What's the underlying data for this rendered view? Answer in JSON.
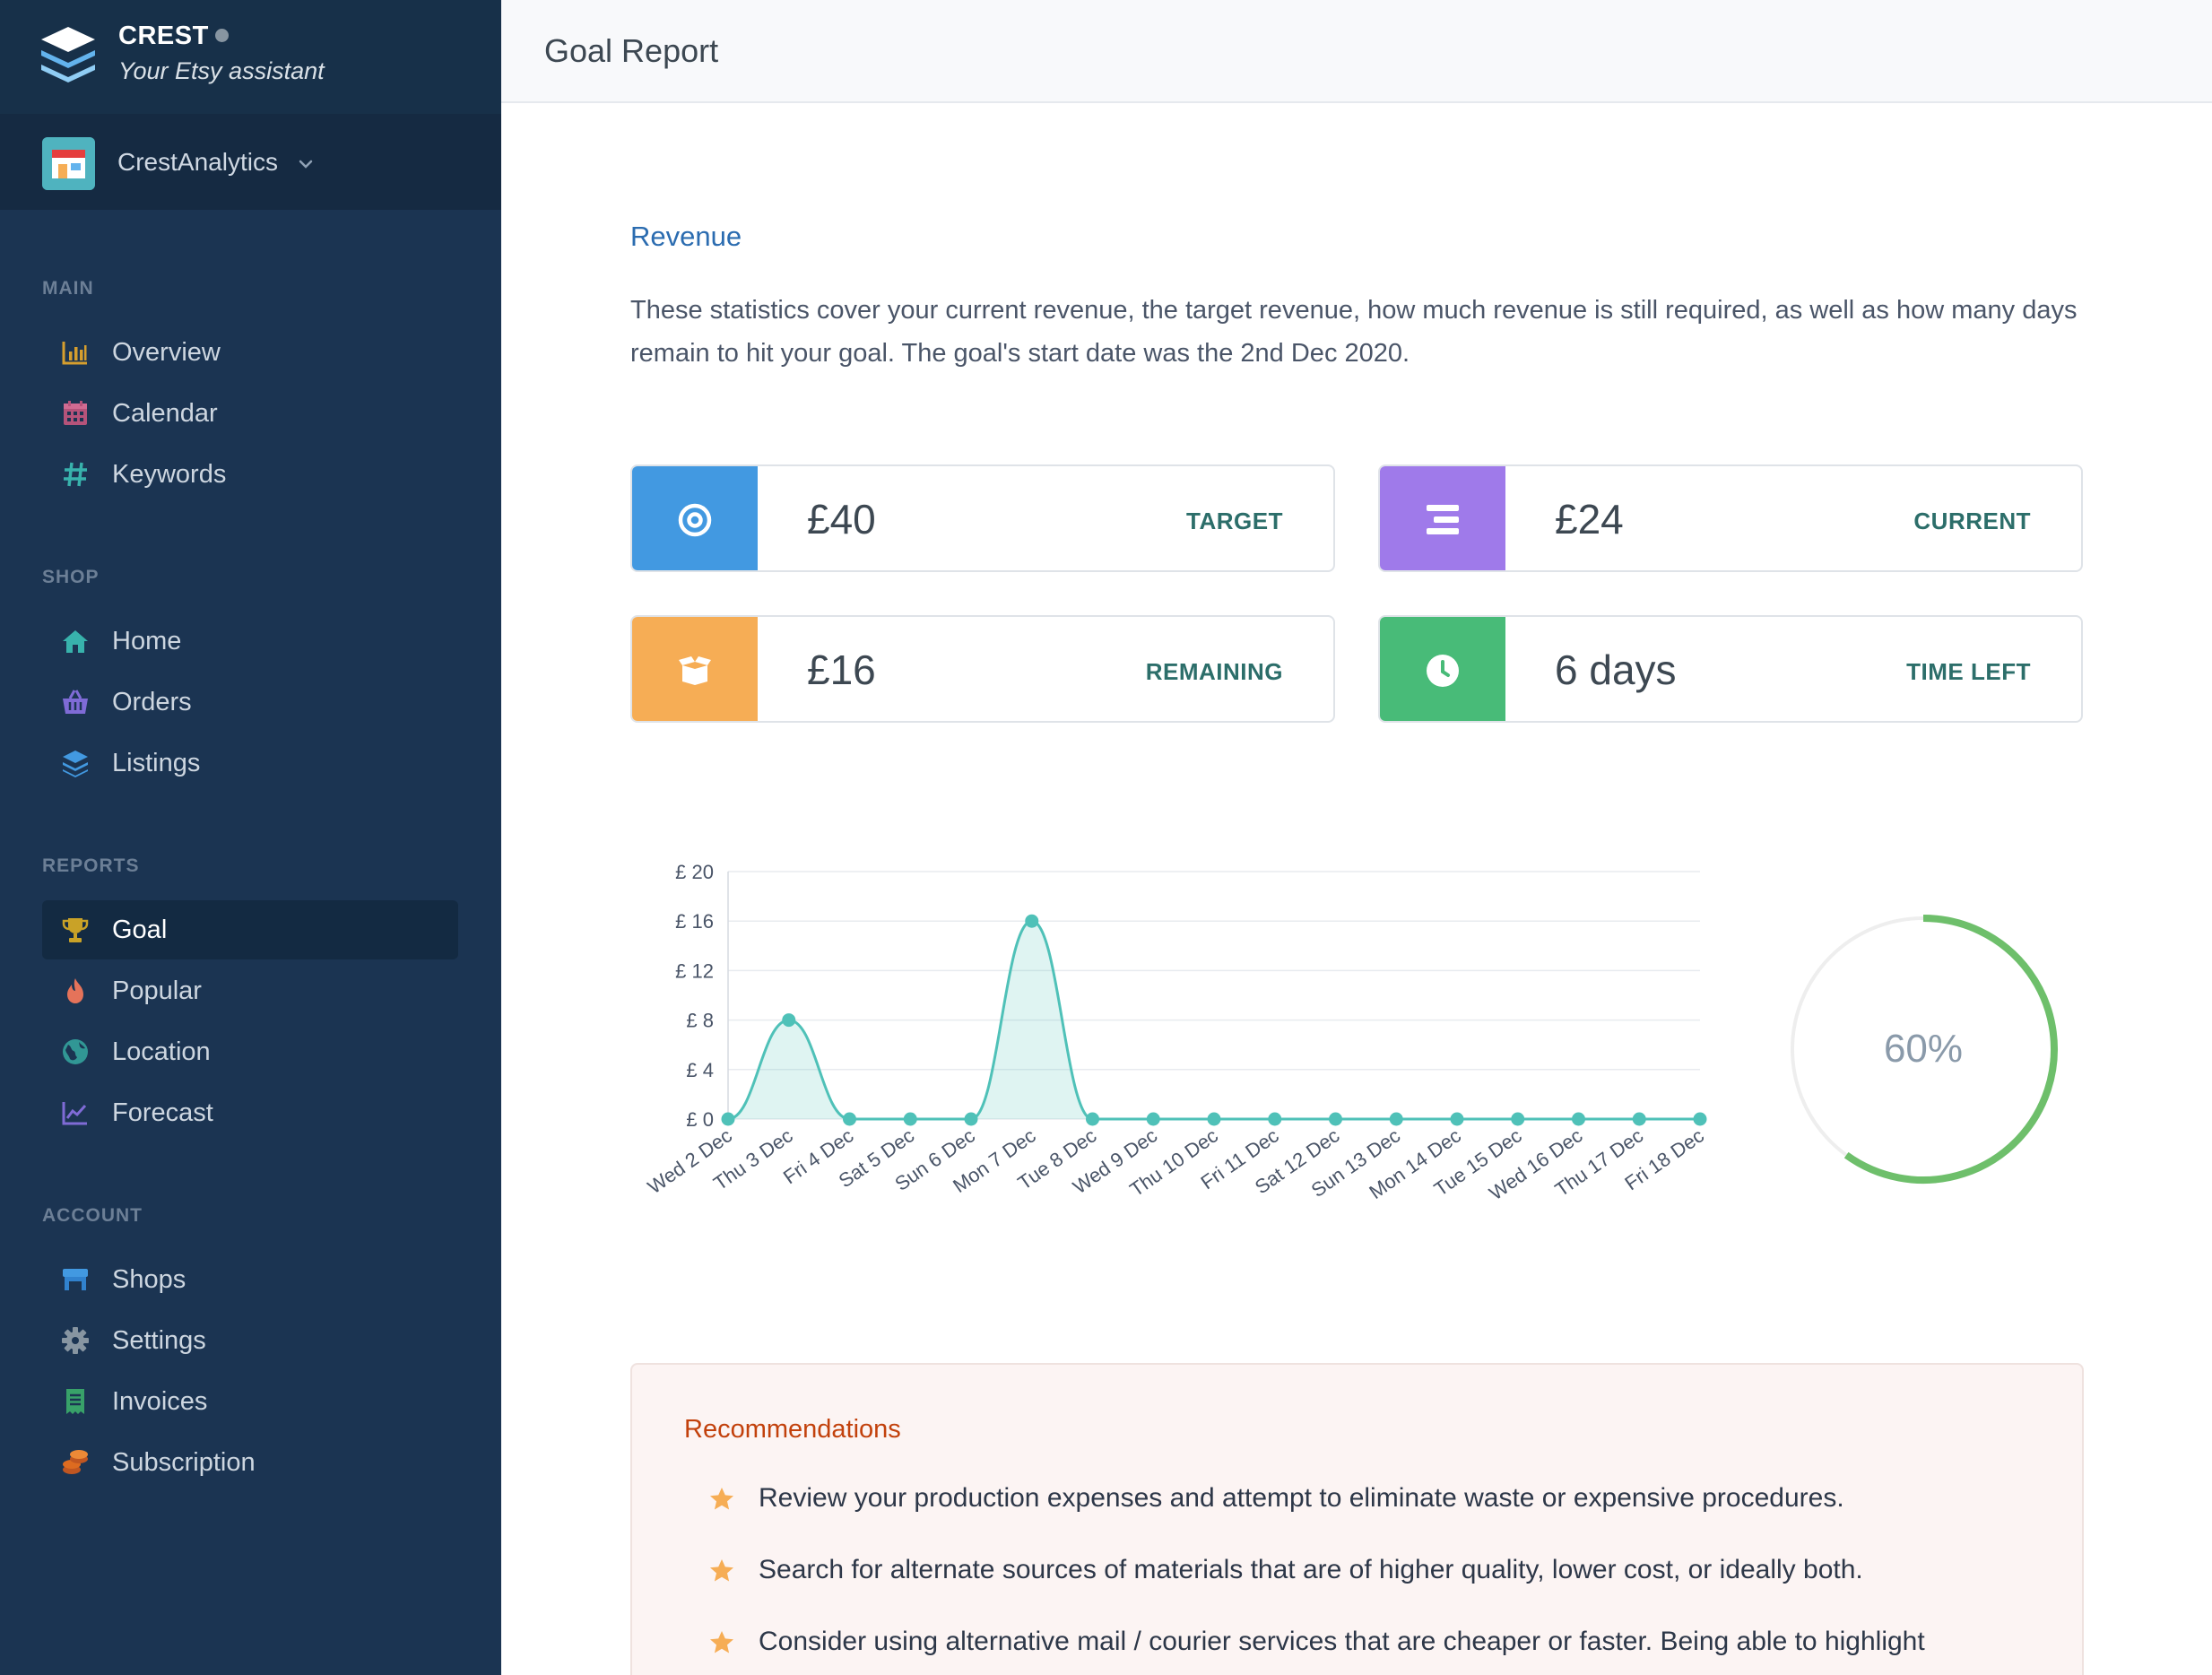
{
  "brand": {
    "name": "CREST",
    "tagline": "Your Etsy assistant"
  },
  "shop": {
    "name": "CrestAnalytics"
  },
  "nav": {
    "sections": [
      {
        "title": "MAIN",
        "items": [
          {
            "label": "Overview",
            "icon": "bar-chart-icon"
          },
          {
            "label": "Calendar",
            "icon": "calendar-icon"
          },
          {
            "label": "Keywords",
            "icon": "hash-icon"
          }
        ]
      },
      {
        "title": "SHOP",
        "items": [
          {
            "label": "Home",
            "icon": "home-icon"
          },
          {
            "label": "Orders",
            "icon": "basket-icon"
          },
          {
            "label": "Listings",
            "icon": "layers-icon"
          }
        ]
      },
      {
        "title": "REPORTS",
        "items": [
          {
            "label": "Goal",
            "icon": "trophy-icon",
            "active": true
          },
          {
            "label": "Popular",
            "icon": "flame-icon"
          },
          {
            "label": "Location",
            "icon": "globe-icon"
          },
          {
            "label": "Forecast",
            "icon": "line-chart-icon"
          }
        ]
      },
      {
        "title": "ACCOUNT",
        "items": [
          {
            "label": "Shops",
            "icon": "store-icon"
          },
          {
            "label": "Settings",
            "icon": "gear-icon"
          },
          {
            "label": "Invoices",
            "icon": "receipt-icon"
          },
          {
            "label": "Subscription",
            "icon": "coins-icon"
          }
        ]
      }
    ]
  },
  "header": {
    "title": "Goal Report"
  },
  "revenue": {
    "title": "Revenue",
    "description": "These statistics cover your current revenue, the target revenue, how much revenue is still required, as well as how many days remain to hit your goal. The goal's start date was the 2nd Dec 2020."
  },
  "stats": [
    {
      "value": "£40",
      "label": "TARGET",
      "color": "#4299e1",
      "icon": "target-icon"
    },
    {
      "value": "£24",
      "label": "CURRENT",
      "color": "#9f7aea",
      "icon": "bars-icon"
    },
    {
      "value": "£16",
      "label": "REMAINING",
      "color": "#f6ad55",
      "icon": "box-icon"
    },
    {
      "value": "6 days",
      "label": "TIME LEFT",
      "color": "#48bb78",
      "icon": "clock-icon"
    }
  ],
  "chart_data": {
    "type": "area",
    "categories": [
      "Wed 2 Dec",
      "Thu 3 Dec",
      "Fri 4 Dec",
      "Sat 5 Dec",
      "Sun 6 Dec",
      "Mon 7 Dec",
      "Tue 8 Dec",
      "Wed 9 Dec",
      "Thu 10 Dec",
      "Fri 11 Dec",
      "Sat 12 Dec",
      "Sun 13 Dec",
      "Mon 14 Dec",
      "Tue 15 Dec",
      "Wed 16 Dec",
      "Thu 17 Dec",
      "Fri 18 Dec"
    ],
    "values": [
      0,
      8,
      0,
      0,
      0,
      16,
      0,
      0,
      0,
      0,
      0,
      0,
      0,
      0,
      0,
      0,
      0
    ],
    "ylim": [
      0,
      20
    ],
    "yticks": [
      "£ 0",
      "£ 4",
      "£ 8",
      "£ 12",
      "£ 16",
      "£ 20"
    ],
    "grid": true,
    "color": "#4fc1b8"
  },
  "progress": {
    "label": "60%",
    "fraction": 0.6,
    "color": "#6ebf6b"
  },
  "recommendations": {
    "title": "Recommendations",
    "items": [
      "Review your production expenses and attempt to eliminate waste or expensive procedures.",
      "Search for alternate sources of materials that are of higher quality, lower cost, or ideally both.",
      "Consider using alternative mail / courier services that are cheaper or faster. Being able to highlight"
    ]
  }
}
